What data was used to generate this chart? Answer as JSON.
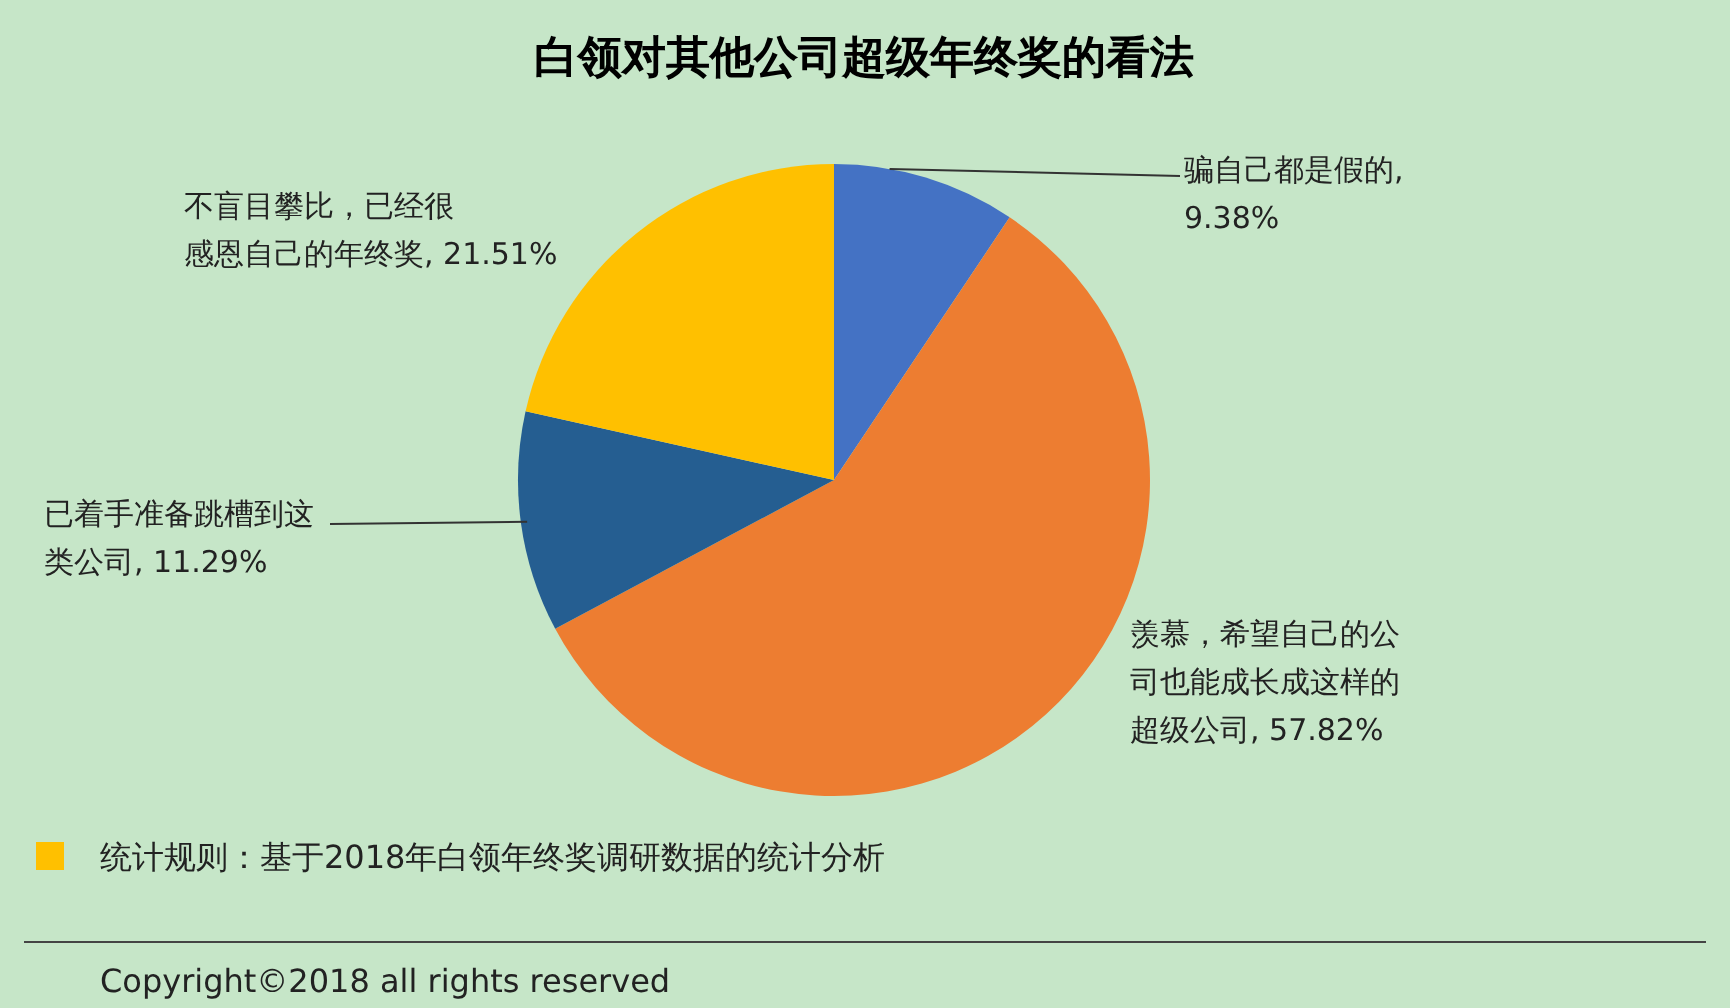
{
  "chart_data": {
    "type": "pie",
    "title": "白领对其他公司超级年终奖的看法",
    "categories": [
      "骗自己都是假的",
      "羡慕，希望自己的公司也能成长成这样的超级公司",
      "已着手准备跳槽到这类公司",
      "不盲目攀比，已经很感恩自己的年终奖"
    ],
    "values": [
      9.38,
      57.82,
      11.29,
      21.51
    ],
    "value_labels": [
      ", 9.38%",
      ", 57.82%",
      ", 11.29%",
      ", 21.51%"
    ],
    "colors": [
      "#4472c4",
      "#ed7d31",
      "#255e91",
      "#ffc000"
    ],
    "annotations": [
      "统计规则：基于2018年白领年终奖调研数据的统计分析",
      "Copyright©2018 all rights reserved"
    ]
  }
}
